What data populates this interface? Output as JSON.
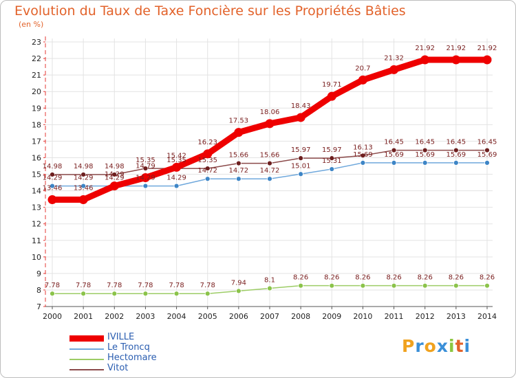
{
  "title": "Evolution du Taux de Taxe Foncière sur les Propriétés Bâties",
  "unit_label": "(en %)",
  "logo": {
    "text": "Proxiti",
    "letters": [
      "P",
      "r",
      "o",
      "x",
      "i",
      "t",
      "i"
    ],
    "colors": [
      "#f0a21f",
      "#3a8fd8",
      "#f0a21f",
      "#3a8fd8",
      "#8cc63f",
      "#e2622a",
      "#3a8fd8"
    ]
  },
  "chart_data": {
    "type": "line",
    "title": "Evolution du Taux de Taxe Foncière sur les Propriétés Bâties",
    "ylabel": "(en %)",
    "xlabel": "",
    "x": [
      "2000",
      "2001",
      "2002",
      "2003",
      "2004",
      "2005",
      "2006",
      "2007",
      "2008",
      "2009",
      "2010",
      "2011",
      "2012",
      "2013",
      "2014"
    ],
    "ylim": [
      7,
      23
    ],
    "yticks": [
      "7",
      "8",
      "9",
      "10",
      "11",
      "12",
      "13",
      "14",
      "15",
      "16",
      "17",
      "18",
      "19",
      "20",
      "21",
      "22",
      "23"
    ],
    "grid": true,
    "legend_position": "bottom-left",
    "series": [
      {
        "name": "IVILLE",
        "color": "#ee0000",
        "values": [
          13.46,
          13.46,
          14.29,
          14.79,
          15.42,
          16.23,
          17.53,
          18.06,
          18.43,
          19.71,
          20.7,
          21.32,
          21.92,
          21.92,
          21.92
        ],
        "labels": [
          "13.46",
          "13.46",
          "14.29",
          "14.79",
          "15.42",
          "16.23",
          "17.53",
          "18.06",
          "18.43",
          "19.71",
          "20.7",
          "21.32",
          "21.92",
          "21.92",
          "21.92"
        ]
      },
      {
        "name": "Le Troncq",
        "color": "#6fa8dc",
        "values": [
          14.29,
          14.29,
          14.29,
          14.29,
          14.29,
          14.72,
          14.72,
          14.72,
          15.01,
          15.31,
          15.69,
          15.69,
          15.69,
          15.69,
          15.69
        ],
        "labels": [
          "14.29",
          "14.29",
          "14.29",
          "14.29",
          "14.29",
          "14.72",
          "14.72",
          "14.72",
          "15.01",
          "15.31",
          "15.69",
          "15.69",
          "15.69",
          "15.69",
          "15.69"
        ]
      },
      {
        "name": "Hectomare",
        "color": "#9ccc65",
        "values": [
          7.78,
          7.78,
          7.78,
          7.78,
          7.78,
          7.78,
          7.94,
          8.1,
          8.26,
          8.26,
          8.26,
          8.26,
          8.26,
          8.26,
          8.26
        ],
        "labels": [
          "7.78",
          "7.78",
          "7.78",
          "7.78",
          "7.78",
          "7.78",
          "7.94",
          "8.1",
          "8.26",
          "8.26",
          "8.26",
          "8.26",
          "8.26",
          "8.26",
          "8.26"
        ]
      },
      {
        "name": "Vitot",
        "color": "#8b4a4a",
        "values": [
          14.98,
          14.98,
          14.98,
          15.35,
          15.35,
          15.35,
          15.66,
          15.66,
          15.97,
          15.97,
          16.13,
          16.45,
          16.45,
          16.45,
          16.45
        ],
        "labels": [
          "14.98",
          "14.98",
          "14.98",
          "15.35",
          "15.35",
          "15.35",
          "15.66",
          "15.66",
          "15.97",
          "15.97",
          "16.13",
          "16.45",
          "16.45",
          "16.45",
          "16.45"
        ]
      }
    ]
  }
}
